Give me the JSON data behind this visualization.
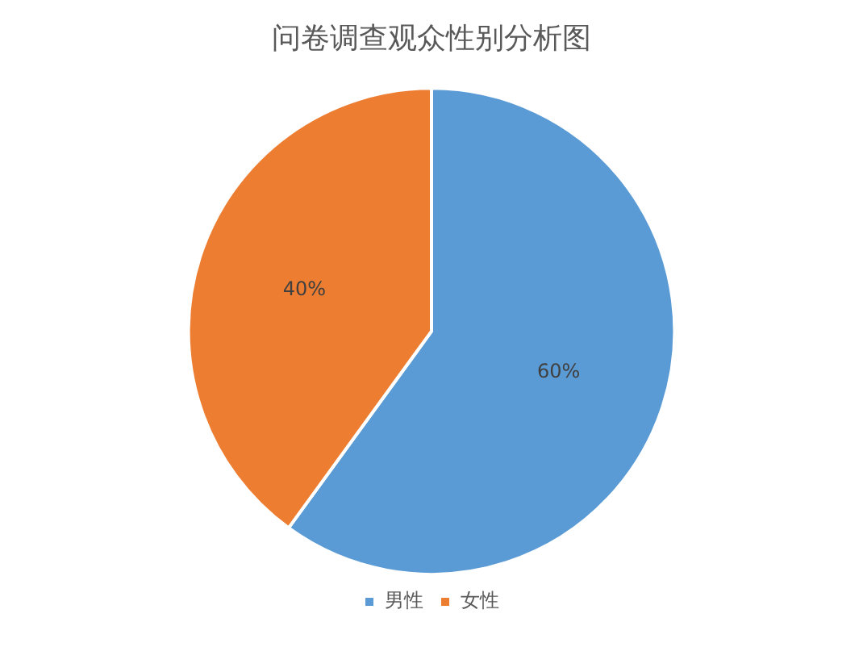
{
  "chart_data": {
    "type": "pie",
    "title": "问卷调查观众性别分析图",
    "categories": [
      "男性",
      "女性"
    ],
    "values": [
      60,
      40
    ],
    "colors": [
      "#5b9bd5",
      "#ed7d31"
    ],
    "value_labels": [
      "60%",
      "40%"
    ],
    "legend": "bottom"
  }
}
